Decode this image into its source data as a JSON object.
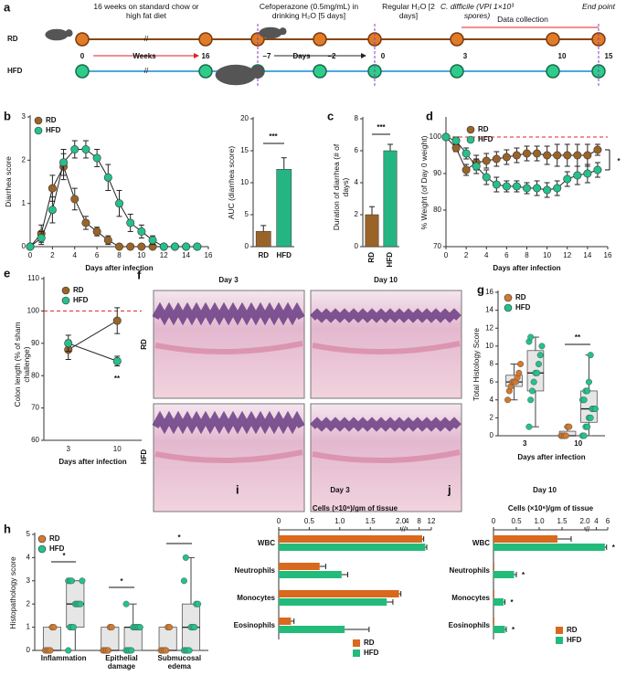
{
  "timeline": {
    "label": "a",
    "groups": [
      "RD",
      "HFD"
    ],
    "notes": [
      "16 weeks on standard chow or high fat diet",
      "Cefoperazone (0.5mg/mL) in drinking H₂O [5 days]",
      "Regular H₂O [2 days]",
      "C. difficile (VPI 1×10³ spores)",
      "Data collection",
      "End point"
    ],
    "week_labels": [
      "0",
      "Weeks",
      "16"
    ],
    "day_labels": [
      "–7",
      "Days",
      "–2",
      "0",
      "3",
      "10",
      "15"
    ]
  },
  "histology": {
    "label": "f",
    "columns": [
      "Day 3",
      "Day 10"
    ],
    "rows": [
      "RD",
      "HFD"
    ]
  },
  "chart_data": [
    {
      "type": "line",
      "label": "b",
      "xlabel": "Days after infection",
      "ylabel": "Diarrhea score",
      "x": [
        0,
        1,
        2,
        3,
        4,
        5,
        6,
        7,
        8,
        9,
        10,
        11,
        12,
        13,
        14,
        15
      ],
      "series": [
        {
          "name": "RD",
          "color": "#9a6428",
          "values": [
            0,
            0.3,
            1.35,
            1.85,
            1.1,
            0.55,
            0.35,
            0.15,
            0,
            0,
            0,
            0,
            0,
            0,
            0,
            0
          ],
          "errors": [
            0,
            0.2,
            0.3,
            0.3,
            0.25,
            0.15,
            0.1,
            0.1,
            0,
            0,
            0,
            0,
            0,
            0,
            0,
            0
          ]
        },
        {
          "name": "HFD",
          "color": "#25c08c",
          "values": [
            0,
            0.2,
            0.85,
            1.95,
            2.25,
            2.25,
            2.05,
            1.6,
            1,
            0.55,
            0.35,
            0.15,
            0,
            0,
            0,
            0
          ],
          "errors": [
            0,
            0.15,
            0.3,
            0.3,
            0.2,
            0.2,
            0.2,
            0.3,
            0.3,
            0.2,
            0.15,
            0.1,
            0,
            0,
            0,
            0
          ]
        }
      ],
      "xlim": [
        0,
        16
      ],
      "xticks": [
        0,
        2,
        4,
        6,
        8,
        10,
        12,
        14,
        16
      ],
      "ylim": [
        0,
        3
      ],
      "yticks": [
        0,
        1,
        2,
        3
      ],
      "legend": "upper left"
    },
    {
      "type": "bar",
      "ylabel": "AUC (diarrhea score)",
      "categories": [
        "RD",
        "HFD"
      ],
      "values": [
        2.4,
        12.1
      ],
      "errors": [
        0.9,
        1.8
      ],
      "colors": [
        "#9a6428",
        "#25b583"
      ],
      "ylim": [
        0,
        20
      ],
      "yticks": [
        0,
        5,
        10,
        15,
        20
      ],
      "annotation": "***"
    },
    {
      "type": "bar",
      "label": "c",
      "ylabel": "Duration of diarrhea (# of days)",
      "categories": [
        "RD",
        "HFD"
      ],
      "values": [
        2,
        6
      ],
      "errors": [
        0.5,
        0.4
      ],
      "colors": [
        "#9a6428",
        "#25b583"
      ],
      "ylim": [
        0,
        8
      ],
      "yticks": [
        0,
        2,
        4,
        6,
        8
      ],
      "annotation": "***"
    },
    {
      "type": "line",
      "label": "d",
      "xlabel": "Days after infection",
      "ylabel": "% Weight (of Day 0 weight)",
      "x": [
        0,
        1,
        2,
        3,
        4,
        5,
        6,
        7,
        8,
        9,
        10,
        11,
        12,
        13,
        14,
        15
      ],
      "series": [
        {
          "name": "RD",
          "color": "#9a6428",
          "values": [
            100,
            97,
            91,
            93,
            93.5,
            94,
            94.5,
            95,
            95.5,
            95.5,
            95,
            95,
            95,
            95,
            95,
            96.5
          ],
          "errors": [
            0,
            1,
            1.5,
            2,
            2,
            2,
            2,
            2,
            2,
            2,
            2.5,
            3,
            3,
            3,
            3,
            1.5
          ]
        },
        {
          "name": "HFD",
          "color": "#25c08c",
          "values": [
            100,
            99,
            95.5,
            92,
            89,
            87,
            86.5,
            86.5,
            86,
            86,
            85.5,
            86,
            88.5,
            89.5,
            90,
            91
          ],
          "errors": [
            0,
            1,
            1.5,
            2,
            2,
            2,
            1.5,
            1.5,
            1.5,
            2,
            2,
            2,
            2,
            2.5,
            2.5,
            2
          ]
        }
      ],
      "xlim": [
        0,
        16
      ],
      "xticks": [
        0,
        2,
        4,
        6,
        8,
        10,
        12,
        14,
        16
      ],
      "ylim": [
        70,
        105
      ],
      "yticks": [
        70,
        80,
        90,
        100
      ],
      "ref_line": 100,
      "annotation": "*",
      "legend": "upper left"
    },
    {
      "type": "line",
      "label": "e",
      "xlabel": "Days after infection",
      "ylabel": "Colon length (% of sham challenge)",
      "categories": [
        "3",
        "10"
      ],
      "series": [
        {
          "name": "RD",
          "color": "#9a6428",
          "values": [
            88,
            97
          ],
          "errors": [
            3,
            4
          ]
        },
        {
          "name": "HFD",
          "color": "#25c08c",
          "values": [
            90,
            84.5
          ],
          "errors": [
            2.5,
            1.5
          ]
        }
      ],
      "ylim": [
        60,
        110
      ],
      "yticks": [
        60,
        70,
        80,
        90,
        100,
        110
      ],
      "ref_line": 100,
      "annotation": "**",
      "legend": "upper left"
    },
    {
      "type": "box",
      "label": "g",
      "xlabel": "Days after infection",
      "ylabel": "Total Histology Score",
      "categories": [
        "3",
        "10"
      ],
      "series": [
        {
          "name": "RD",
          "color": "#d07a30",
          "boxes": [
            {
              "min": 4,
              "q1": 5.5,
              "median": 6,
              "q3": 6.75,
              "max": 8,
              "points": [
                4,
                5,
                5.5,
                6,
                6,
                6,
                6.5,
                7,
                8
              ]
            },
            {
              "min": 0,
              "q1": 0,
              "median": 0,
              "q3": 0.5,
              "max": 1,
              "points": [
                0,
                0,
                0,
                0,
                1,
                1
              ]
            }
          ]
        },
        {
          "name": "HFD",
          "color": "#25c08c",
          "boxes": [
            {
              "min": 1,
              "q1": 5,
              "median": 7,
              "q3": 9.5,
              "max": 11,
              "points": [
                1,
                4,
                5,
                6,
                7,
                7,
                8,
                9,
                10,
                10.5,
                11
              ]
            },
            {
              "min": 0,
              "q1": 1.5,
              "median": 3,
              "q3": 5,
              "max": 9,
              "points": [
                0,
                0,
                1,
                1,
                2,
                2,
                3,
                3,
                3,
                4,
                4,
                5,
                5,
                6,
                9
              ]
            }
          ]
        }
      ],
      "ylim": [
        0,
        16
      ],
      "yticks": [
        0,
        2,
        4,
        6,
        8,
        10,
        12,
        14,
        16
      ],
      "annotation": "**",
      "legend": "upper left"
    },
    {
      "type": "box",
      "label": "h",
      "ylabel": "Histopathology score",
      "categories": [
        "Inflammation",
        "Epithelial damage",
        "Submucosal edema"
      ],
      "series": [
        {
          "name": "RD",
          "color": "#d07a30",
          "boxes": [
            {
              "min": 0,
              "q1": 0,
              "median": 0,
              "q3": 1,
              "max": 1,
              "points": [
                0,
                0,
                0,
                0,
                1,
                1
              ]
            },
            {
              "min": 0,
              "q1": 0,
              "median": 0,
              "q3": 1,
              "max": 1,
              "points": [
                0,
                0,
                0,
                0,
                1,
                1
              ]
            },
            {
              "min": 0,
              "q1": 0,
              "median": 0,
              "q3": 1,
              "max": 1,
              "points": [
                0,
                0,
                0,
                0,
                1,
                1
              ]
            }
          ]
        },
        {
          "name": "HFD",
          "color": "#25c08c",
          "boxes": [
            {
              "min": 0,
              "q1": 1,
              "median": 2,
              "q3": 3,
              "max": 3,
              "points": [
                0,
                1,
                1,
                1,
                2,
                2,
                2,
                2,
                3,
                3,
                3,
                3
              ]
            },
            {
              "min": 0,
              "q1": 0,
              "median": 1,
              "q3": 1,
              "max": 2,
              "points": [
                0,
                0,
                0,
                0,
                1,
                1,
                1,
                1,
                1,
                2
              ]
            },
            {
              "min": 0,
              "q1": 0,
              "median": 1,
              "q3": 2,
              "max": 4,
              "points": [
                0,
                0,
                0,
                0,
                1,
                1,
                1,
                2,
                2,
                3,
                4
              ]
            }
          ]
        }
      ],
      "ylim": [
        0,
        5
      ],
      "yticks": [
        0,
        1,
        2,
        3,
        4,
        5
      ],
      "annotations": [
        "*",
        "*",
        "*"
      ],
      "legend": "upper left"
    },
    {
      "type": "hbar",
      "label": "i",
      "title": "Day 3",
      "xlabel": "Cells (×10⁶)/gm of tissue",
      "categories": [
        "WBC",
        "Neutrophils",
        "Monocytes",
        "Eosinophils"
      ],
      "series": [
        {
          "name": "RD",
          "color": "#d9691c",
          "values": [
            9,
            0.67,
            1.97,
            0.2
          ],
          "errors": [
            0.5,
            0.1,
            0.05,
            0.05
          ]
        },
        {
          "name": "HFD",
          "color": "#22bb7a",
          "values": [
            10,
            1.03,
            1.77,
            1.08
          ],
          "errors": [
            0.5,
            0.1,
            0.1,
            0.4
          ]
        }
      ],
      "xlim": [
        0,
        12
      ],
      "xticks": [
        0,
        0.5,
        {
          "value": 1,
          "label": "1.0"
        },
        1.5,
        {
          "value": 2,
          "label": "2.0"
        },
        4,
        8,
        12
      ],
      "legend": "lower right"
    },
    {
      "type": "hbar",
      "label": "j",
      "title": "Day 10",
      "xlabel": "Cells (×10⁶)/gm of tissue",
      "categories": [
        "WBC",
        "Neutrophils",
        "Monocytes",
        "Eosinophils"
      ],
      "series": [
        {
          "name": "RD",
          "color": "#d9691c",
          "values": [
            1.4,
            0.02,
            0.02,
            0.02
          ],
          "errors": [
            0.3,
            0,
            0,
            0
          ]
        },
        {
          "name": "HFD",
          "color": "#22bb7a",
          "values": [
            5.5,
            0.45,
            0.22,
            0.25
          ],
          "errors": [
            0.3,
            0.05,
            0.03,
            0.03
          ]
        }
      ],
      "xlim": [
        0,
        6
      ],
      "xticks": [
        0,
        0.5,
        {
          "value": 1,
          "label": "1.0"
        },
        1.5,
        {
          "value": 2,
          "label": "2.0"
        },
        4,
        6
      ],
      "annotations": [
        "*",
        "*",
        "*",
        "*"
      ],
      "legend": "lower right"
    }
  ]
}
